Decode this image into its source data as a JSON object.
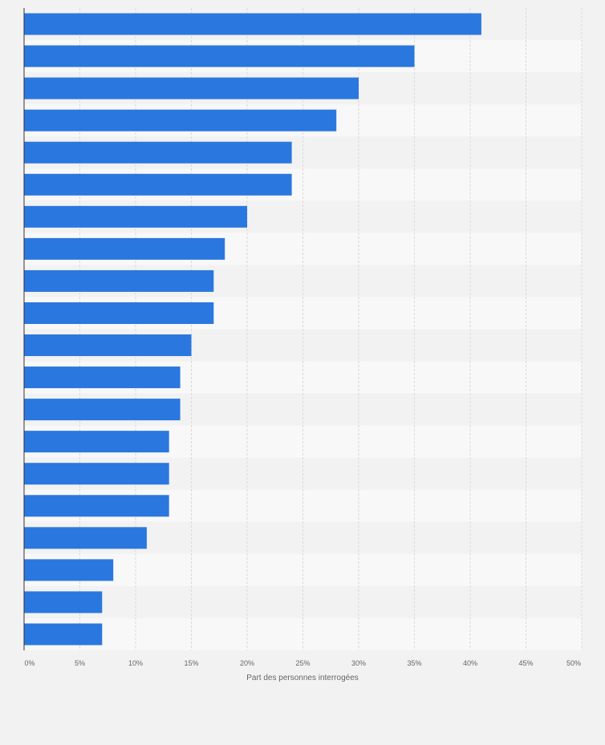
{
  "chart_data": {
    "type": "bar",
    "orientation": "horizontal",
    "title": "",
    "xlabel": "Part des personnes interrogées",
    "ylabel": "",
    "xlim": [
      0,
      50
    ],
    "x_ticks": [
      "0%",
      "5%",
      "10%",
      "15%",
      "20%",
      "25%",
      "30%",
      "35%",
      "40%",
      "45%",
      "50%"
    ],
    "categories": [
      "",
      "",
      "",
      "",
      "",
      "",
      "",
      "",
      "",
      "",
      "",
      "",
      "",
      "",
      "",
      "",
      "",
      "",
      "",
      ""
    ],
    "values": [
      41,
      35,
      30,
      28,
      24,
      24,
      20,
      18,
      17,
      17,
      15,
      14,
      14,
      13,
      13,
      13,
      11,
      8,
      7,
      7
    ],
    "unit": "%",
    "grid": true,
    "bar_color": "#2a77df",
    "grid_color": "#d9d9d9"
  }
}
